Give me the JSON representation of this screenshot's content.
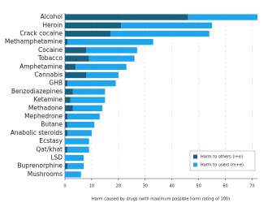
{
  "chart_data": {
    "type": "bar",
    "orientation": "horizontal",
    "stacked": true,
    "categories": [
      "Alcohol",
      "Heroin",
      "Crack cocaine",
      "Methamphetamine",
      "Cocaine",
      "Tobacco",
      "Amphetamine",
      "Cannabis",
      "GHB",
      "Benzodiazepines",
      "Ketamine",
      "Methadone",
      "Mephedrone",
      "Butane",
      "Anabolic steroids",
      "Ecstasy",
      "Qat/khat",
      "LSD",
      "Buprenorphine",
      "Mushrooms"
    ],
    "series": [
      {
        "name": "Harm to others (i+e)",
        "color": "#17607f",
        "values": [
          46,
          21,
          17,
          1,
          8,
          9,
          4,
          8,
          1,
          3,
          2,
          3,
          1,
          1,
          1,
          0,
          1,
          0,
          1,
          0
        ]
      },
      {
        "name": "Harm to users (m+e)",
        "color": "#1ea5ec",
        "values": [
          26,
          34,
          37,
          32,
          19,
          17,
          19,
          12,
          18,
          12,
          13,
          11,
          12,
          10,
          9,
          9,
          8,
          7,
          6,
          6
        ]
      }
    ],
    "xlim": [
      0,
      72
    ],
    "xticks": [
      0,
      10,
      20,
      30,
      40,
      50,
      60,
      70
    ],
    "xlabel": "Harm caused by drugs (with maximum possible harm rating of 100)",
    "grid": true,
    "legend": "lower right"
  }
}
